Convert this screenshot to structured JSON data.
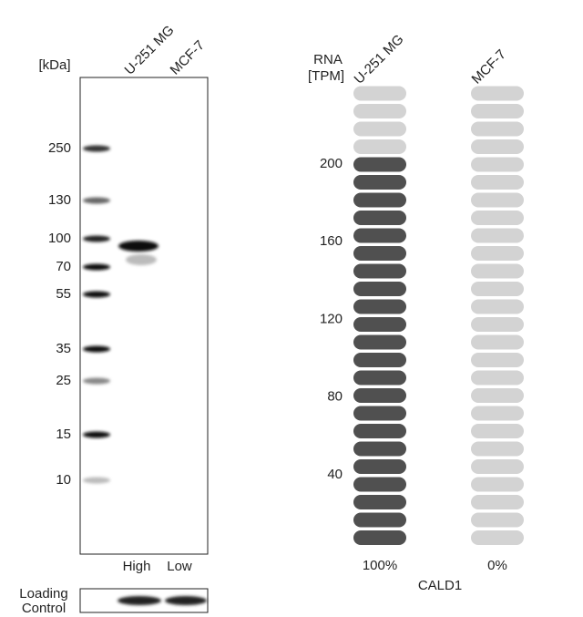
{
  "blot": {
    "unit": "[kDa]",
    "lanes": [
      "U-251 MG",
      "MCF-7"
    ],
    "markers": [
      250,
      130,
      100,
      70,
      55,
      35,
      25,
      15,
      10
    ],
    "levels": [
      "High",
      "Low"
    ],
    "loading_control": [
      "Loading",
      "Control"
    ]
  },
  "rna": {
    "axis_title": [
      "RNA",
      "[TPM]"
    ],
    "ticks": [
      200,
      160,
      120,
      80,
      40
    ],
    "total_pills": 26,
    "samples": [
      {
        "name": "U-251 MG",
        "filled_pills": 22,
        "percent": "100%"
      },
      {
        "name": "MCF-7",
        "filled_pills": 0,
        "percent": "0%"
      }
    ],
    "gene": "CALD1"
  }
}
